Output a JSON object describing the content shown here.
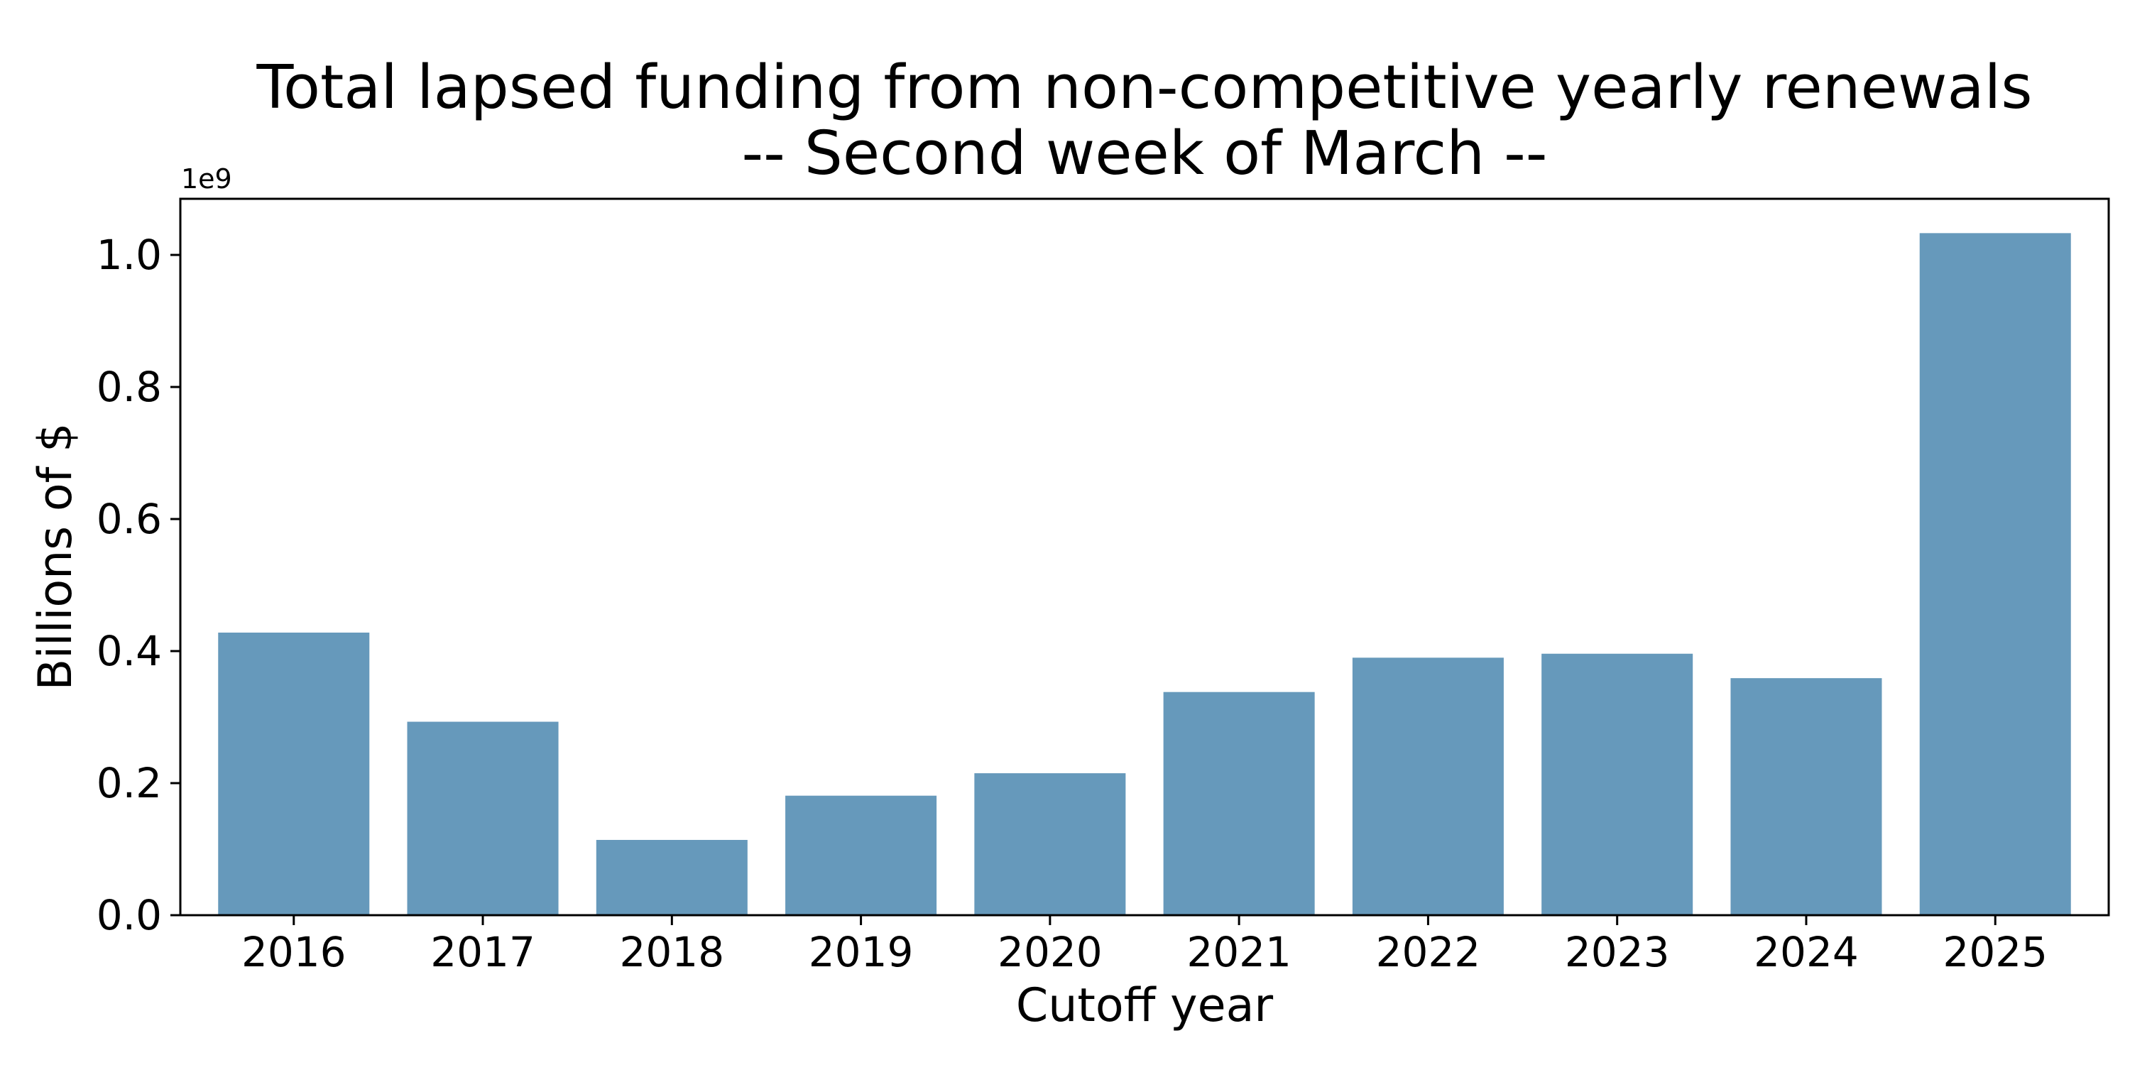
{
  "chart_data": {
    "type": "bar",
    "title_line1": "Total lapsed funding from non-competitive yearly renewals",
    "title_line2": "-- Second week of March --",
    "xlabel": "Cutoff year",
    "ylabel": "Billions of $",
    "offset_label": "1e9",
    "categories": [
      "2016",
      "2017",
      "2018",
      "2019",
      "2020",
      "2021",
      "2022",
      "2023",
      "2024",
      "2025"
    ],
    "values": [
      0.428,
      0.293,
      0.114,
      0.181,
      0.215,
      0.338,
      0.39,
      0.396,
      0.359,
      1.033
    ],
    "value_scale": 1000000000,
    "ylim": [
      0,
      1.085
    ],
    "yticks": [
      0.0,
      0.2,
      0.4,
      0.6,
      0.8,
      1.0
    ],
    "ytick_labels": [
      "0.0",
      "0.2",
      "0.4",
      "0.6",
      "0.8",
      "1.0"
    ],
    "grid": false,
    "legend": "none",
    "bar_color": "#6699bb"
  }
}
